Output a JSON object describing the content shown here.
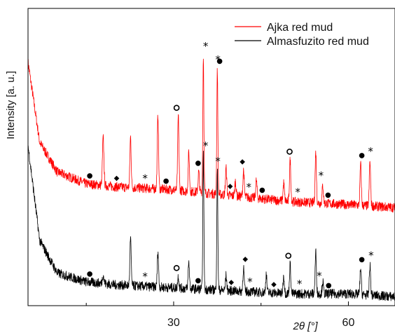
{
  "chart_data": {
    "type": "line",
    "title": "",
    "xlabel": "2θ [°]",
    "ylabel": "Intensity [a. u.]",
    "xlim": [
      5,
      68
    ],
    "x_ticks": [
      30,
      60
    ],
    "y_ticks": [],
    "grid": false,
    "legend_position": "top-right",
    "series": [
      {
        "name": "Ajka red mud",
        "color": "#ff0000",
        "baseline": [
          [
            5,
            0.82
          ],
          [
            7,
            0.55
          ],
          [
            10,
            0.45
          ],
          [
            15,
            0.41
          ],
          [
            20,
            0.4
          ],
          [
            30,
            0.39
          ],
          [
            40,
            0.37
          ],
          [
            50,
            0.35
          ],
          [
            60,
            0.34
          ],
          [
            68,
            0.33
          ]
        ],
        "peaks": [
          {
            "x": 17.9,
            "h": 0.16,
            "w": 0.25
          },
          {
            "x": 22.6,
            "h": 0.17,
            "w": 0.22
          },
          {
            "x": 27.3,
            "h": 0.25,
            "w": 0.22
          },
          {
            "x": 30.8,
            "h": 0.25,
            "w": 0.22
          },
          {
            "x": 32.6,
            "h": 0.13,
            "w": 0.22
          },
          {
            "x": 34.3,
            "h": 0.07,
            "w": 0.22
          },
          {
            "x": 35.1,
            "h": 0.46,
            "w": 0.18
          },
          {
            "x": 37.5,
            "h": 0.42,
            "w": 0.18
          },
          {
            "x": 39.0,
            "h": 0.09,
            "w": 0.22
          },
          {
            "x": 40.6,
            "h": 0.05,
            "w": 0.22
          },
          {
            "x": 42.0,
            "h": 0.09,
            "w": 0.22
          },
          {
            "x": 44.2,
            "h": 0.06,
            "w": 0.22
          },
          {
            "x": 48.9,
            "h": 0.06,
            "w": 0.22
          },
          {
            "x": 50.0,
            "h": 0.14,
            "w": 0.22
          },
          {
            "x": 54.4,
            "h": 0.17,
            "w": 0.22
          },
          {
            "x": 55.6,
            "h": 0.06,
            "w": 0.22
          },
          {
            "x": 62.1,
            "h": 0.14,
            "w": 0.22
          },
          {
            "x": 63.7,
            "h": 0.15,
            "w": 0.22
          }
        ]
      },
      {
        "name": "Almasfuzito red mud",
        "color": "#000000",
        "baseline": [
          [
            5,
            0.54
          ],
          [
            7,
            0.22
          ],
          [
            10,
            0.11
          ],
          [
            15,
            0.08
          ],
          [
            20,
            0.07
          ],
          [
            30,
            0.06
          ],
          [
            40,
            0.05
          ],
          [
            50,
            0.04
          ],
          [
            60,
            0.04
          ],
          [
            68,
            0.03
          ]
        ],
        "peaks": [
          {
            "x": 17.9,
            "h": 0.03,
            "w": 0.25
          },
          {
            "x": 22.6,
            "h": 0.16,
            "w": 0.22
          },
          {
            "x": 27.3,
            "h": 0.12,
            "w": 0.22
          },
          {
            "x": 30.8,
            "h": 0.04,
            "w": 0.22
          },
          {
            "x": 32.6,
            "h": 0.09,
            "w": 0.22
          },
          {
            "x": 35.1,
            "h": 0.45,
            "w": 0.18
          },
          {
            "x": 37.5,
            "h": 0.4,
            "w": 0.18
          },
          {
            "x": 39.0,
            "h": 0.05,
            "w": 0.22
          },
          {
            "x": 42.0,
            "h": 0.08,
            "w": 0.22
          },
          {
            "x": 45.9,
            "h": 0.06,
            "w": 0.22
          },
          {
            "x": 48.9,
            "h": 0.06,
            "w": 0.22
          },
          {
            "x": 50.0,
            "h": 0.1,
            "w": 0.22
          },
          {
            "x": 54.4,
            "h": 0.14,
            "w": 0.22
          },
          {
            "x": 55.6,
            "h": 0.04,
            "w": 0.22
          },
          {
            "x": 62.1,
            "h": 0.09,
            "w": 0.22
          },
          {
            "x": 63.7,
            "h": 0.1,
            "w": 0.22
          }
        ]
      }
    ],
    "peak_markers": [
      {
        "series": "Ajka red mud",
        "x": 15.6,
        "symbol": "●"
      },
      {
        "series": "Ajka red mud",
        "x": 20.2,
        "symbol": "◆"
      },
      {
        "series": "Ajka red mud",
        "x": 25.1,
        "symbol": "*"
      },
      {
        "series": "Ajka red mud",
        "x": 28.7,
        "symbol": "●"
      },
      {
        "series": "Ajka red mud",
        "x": 30.5,
        "symbol": "○"
      },
      {
        "series": "Ajka red mud",
        "x": 34.2,
        "symbol": "●"
      },
      {
        "series": "Ajka red mud",
        "x": 35.5,
        "symbol": "*"
      },
      {
        "series": "Ajka red mud",
        "x": 37.6,
        "symbol": "*"
      },
      {
        "series": "Ajka red mud",
        "x": 37.9,
        "symbol": "●"
      },
      {
        "series": "Ajka red mud",
        "x": 39.7,
        "symbol": "◆"
      },
      {
        "series": "Ajka red mud",
        "x": 41.8,
        "symbol": "◆"
      },
      {
        "series": "Ajka red mud",
        "x": 42.9,
        "symbol": "*"
      },
      {
        "series": "Ajka red mud",
        "x": 45.2,
        "symbol": "●"
      },
      {
        "series": "Ajka red mud",
        "x": 49.9,
        "symbol": "○"
      },
      {
        "series": "Ajka red mud",
        "x": 51.3,
        "symbol": "*"
      },
      {
        "series": "Ajka red mud",
        "x": 55.3,
        "symbol": "*"
      },
      {
        "series": "Ajka red mud",
        "x": 56.5,
        "symbol": "●"
      },
      {
        "series": "Ajka red mud",
        "x": 62.3,
        "symbol": "●"
      },
      {
        "series": "Ajka red mud",
        "x": 63.8,
        "symbol": "*"
      },
      {
        "series": "Almasfuzito red mud",
        "x": 15.6,
        "symbol": "●"
      },
      {
        "series": "Almasfuzito red mud",
        "x": 25.1,
        "symbol": "*"
      },
      {
        "series": "Almasfuzito red mud",
        "x": 30.5,
        "symbol": "○"
      },
      {
        "series": "Almasfuzito red mud",
        "x": 34.2,
        "symbol": "●"
      },
      {
        "series": "Almasfuzito red mud",
        "x": 35.5,
        "symbol": "*"
      },
      {
        "series": "Almasfuzito red mud",
        "x": 37.6,
        "symbol": "*"
      },
      {
        "series": "Almasfuzito red mud",
        "x": 39.9,
        "symbol": "◆"
      },
      {
        "series": "Almasfuzito red mud",
        "x": 42.3,
        "symbol": "◆"
      },
      {
        "series": "Almasfuzito red mud",
        "x": 43.1,
        "symbol": "*"
      },
      {
        "series": "Almasfuzito red mud",
        "x": 47.2,
        "symbol": "◆"
      },
      {
        "series": "Almasfuzito red mud",
        "x": 49.7,
        "symbol": "○"
      },
      {
        "series": "Almasfuzito red mud",
        "x": 51.6,
        "symbol": "*"
      },
      {
        "series": "Almasfuzito red mud",
        "x": 55.0,
        "symbol": "*"
      },
      {
        "series": "Almasfuzito red mud",
        "x": 56.6,
        "symbol": "●"
      },
      {
        "series": "Almasfuzito red mud",
        "x": 62.3,
        "symbol": "●"
      },
      {
        "series": "Almasfuzito red mud",
        "x": 63.9,
        "symbol": "*"
      }
    ]
  }
}
